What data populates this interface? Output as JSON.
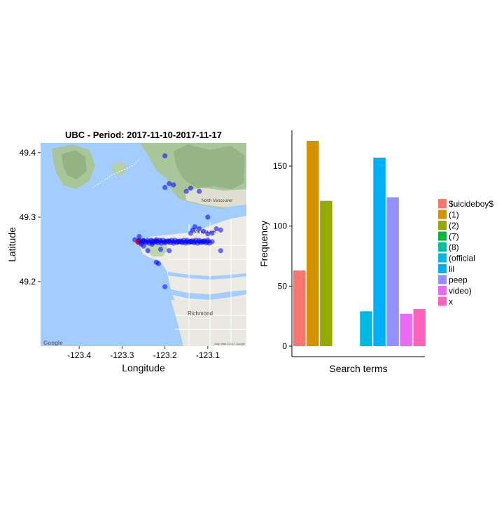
{
  "chart_data": [
    {
      "type": "scatter",
      "title": "UBC - Period: 2017-11-10-2017-11-17",
      "xlabel": "Longitude",
      "ylabel": "Latitude",
      "xlim": [
        -123.49,
        -123.01
      ],
      "ylim": [
        49.1,
        49.415
      ],
      "x_ticks": [
        -123.4,
        -123.3,
        -123.2,
        -123.1
      ],
      "x_tick_labels": [
        "-123.4",
        "-123.3",
        "-123.2",
        "-123.1"
      ],
      "y_ticks": [
        49.2,
        49.3,
        49.4
      ],
      "y_tick_labels": [
        "49.2",
        "49.3",
        "49.4"
      ],
      "background": "Google map tiles of the Vancouver area",
      "map_labels": [
        "Google",
        "Richmond",
        "North Vancouver",
        "Vancouver",
        "Map data ©2017 Google"
      ],
      "series": [
        {
          "color": "#0000ff",
          "x": [
            -123.2,
            -123.19,
            -123.2,
            -123.18,
            -123.15,
            -123.14,
            -123.12,
            -123.1,
            -123.22,
            -123.27,
            -123.26,
            -123.25,
            -123.24,
            -123.23,
            -123.22,
            -123.21,
            -123.2,
            -123.19,
            -123.18,
            -123.17,
            -123.16,
            -123.15,
            -123.14,
            -123.13,
            -123.12,
            -123.11,
            -123.1,
            -123.14,
            -123.135,
            -123.13,
            -123.12,
            -123.11,
            -123.1,
            -123.09,
            -123.08,
            -123.07,
            -123.26,
            -123.255,
            -123.25,
            -123.24,
            -123.23,
            -123.21,
            -123.19,
            -123.09,
            -123.07,
            -123.22,
            -123.215,
            -123.2
          ],
          "y": [
            49.395,
            49.352,
            49.346,
            49.35,
            49.34,
            49.345,
            49.34,
            49.3,
            49.265,
            49.265,
            49.262,
            49.264,
            49.262,
            49.263,
            49.262,
            49.263,
            49.262,
            49.263,
            49.262,
            49.262,
            49.262,
            49.262,
            49.262,
            49.262,
            49.262,
            49.262,
            49.262,
            49.275,
            49.28,
            49.285,
            49.282,
            49.278,
            49.274,
            49.275,
            49.282,
            49.28,
            49.27,
            49.258,
            49.255,
            49.248,
            49.258,
            49.25,
            49.248,
            49.262,
            49.248,
            49.23,
            49.228,
            49.192
          ]
        },
        {
          "color": "#ff0000",
          "x": [
            -123.262
          ],
          "y": [
            49.262
          ]
        }
      ]
    },
    {
      "type": "bar",
      "xlabel": "Search terms",
      "ylabel": "Frequency",
      "ylim": [
        0,
        175
      ],
      "y_ticks": [
        0,
        50,
        100,
        150
      ],
      "y_tick_labels": [
        "0",
        "50",
        "100",
        "150"
      ],
      "legend_position": "right",
      "categories": [
        "$uicideboy$",
        "(1)",
        "(2)",
        "(7)",
        "(8)",
        "(official",
        "lil",
        "peep",
        "video)",
        "x"
      ],
      "values": [
        63,
        171,
        121,
        0,
        0,
        29,
        157,
        124,
        27,
        31
      ],
      "colors": [
        "#F8766D",
        "#D39200",
        "#93AA00",
        "#00BA38",
        "#00C19F",
        "#00B9E3",
        "#00B0F6",
        "#9590FF",
        "#E76BF3",
        "#FF62BC"
      ]
    }
  ]
}
